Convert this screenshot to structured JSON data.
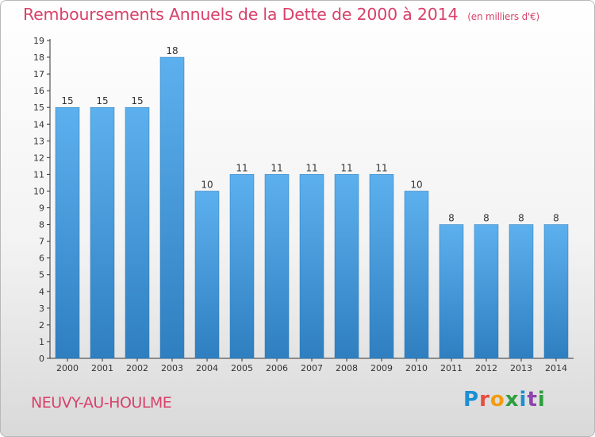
{
  "title": "Remboursements Annuels de la Dette de 2000 à 2014",
  "unit": "(en milliers d'€)",
  "commune": "NEUVY-AU-HOULME",
  "brand": {
    "letters": [
      "P",
      "r",
      "o",
      "x",
      "i",
      "t",
      "i"
    ],
    "colors": [
      "#1b8fd3",
      "#e74c3c",
      "#f39c12",
      "#2e9e3e",
      "#1b8fd3",
      "#8e44ad",
      "#2e9e3e"
    ]
  },
  "colors": {
    "bar": "#4ea3e3",
    "bar_dark": "#2a78b8",
    "title": "#d8416a"
  },
  "chart_data": {
    "type": "bar",
    "categories": [
      "2000",
      "2001",
      "2002",
      "2003",
      "2004",
      "2005",
      "2006",
      "2007",
      "2008",
      "2009",
      "2010",
      "2011",
      "2012",
      "2013",
      "2014"
    ],
    "values": [
      15,
      15,
      15,
      18,
      10,
      11,
      11,
      11,
      11,
      11,
      10,
      8,
      8,
      8,
      8
    ],
    "ylim": [
      0,
      19
    ],
    "yticks": [
      0,
      1,
      2,
      3,
      4,
      5,
      6,
      7,
      8,
      9,
      10,
      11,
      12,
      13,
      14,
      15,
      16,
      17,
      18,
      19
    ],
    "grid": false,
    "data_labels": true
  }
}
